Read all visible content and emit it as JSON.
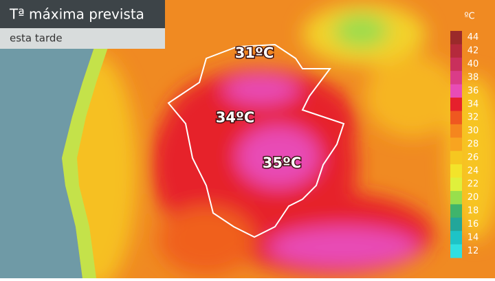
{
  "header": {
    "title": "Tª máxima prevista",
    "subtitle": "esta tarde"
  },
  "map_labels": [
    "31ºC",
    "34ºC",
    "35ºC"
  ],
  "legend": {
    "unit": "ºC",
    "items": [
      {
        "label": "44",
        "color": "#9b2a2a"
      },
      {
        "label": "42",
        "color": "#b52a3c"
      },
      {
        "label": "40",
        "color": "#c9305c"
      },
      {
        "label": "38",
        "color": "#da3c88"
      },
      {
        "label": "36",
        "color": "#e84cb6"
      },
      {
        "label": "34",
        "color": "#e6202c"
      },
      {
        "label": "32",
        "color": "#ef5820"
      },
      {
        "label": "30",
        "color": "#f5861e"
      },
      {
        "label": "28",
        "color": "#f8a420"
      },
      {
        "label": "26",
        "color": "#f6c720"
      },
      {
        "label": "24",
        "color": "#f3e42a"
      },
      {
        "label": "22",
        "color": "#dff03c"
      },
      {
        "label": "20",
        "color": "#98df4c"
      },
      {
        "label": "18",
        "color": "#3fb46c"
      },
      {
        "label": "16",
        "color": "#23a69a"
      },
      {
        "label": "14",
        "color": "#1ec3c6"
      },
      {
        "label": "12",
        "color": "#30dfe0"
      }
    ]
  }
}
